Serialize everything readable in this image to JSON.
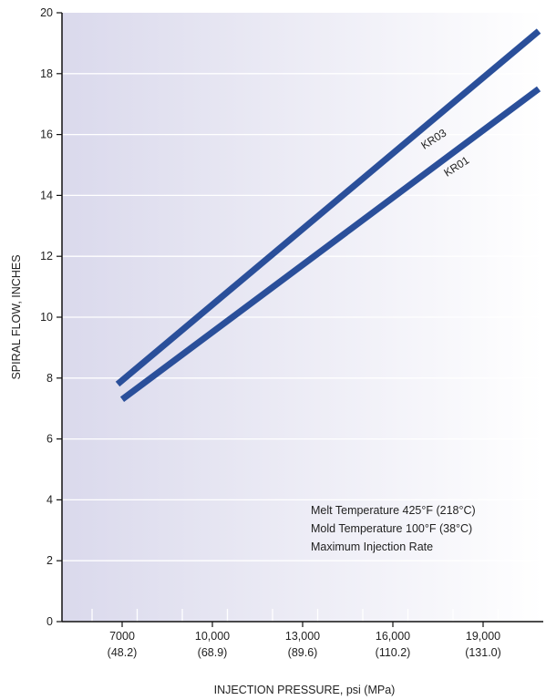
{
  "chart_data": {
    "type": "line",
    "xlabel": "INJECTION PRESSURE, psi (MPa)",
    "ylabel": "SPIRAL FLOW, INCHES",
    "xlim": [
      5000,
      21000
    ],
    "ylim": [
      0,
      20
    ],
    "y_ticks": [
      "0",
      "2",
      "4",
      "6",
      "8",
      "10",
      "12",
      "14",
      "16",
      "18",
      "20"
    ],
    "x_ticks": [
      {
        "value": 7000,
        "psi": "7000",
        "mpa": "(48.2)"
      },
      {
        "value": 10000,
        "psi": "10,000",
        "mpa": "(68.9)"
      },
      {
        "value": 13000,
        "psi": "13,000",
        "mpa": "(89.6)"
      },
      {
        "value": 16000,
        "psi": "16,000",
        "mpa": "(110.2)"
      },
      {
        "value": 19000,
        "psi": "19,000",
        "mpa": "(131.0)"
      }
    ],
    "grid": true,
    "series": [
      {
        "name": "KR03",
        "x": [
          6850,
          20850
        ],
        "y": [
          7.8,
          19.4
        ],
        "color": "#2a4f9a"
      },
      {
        "name": "KR01",
        "x": [
          7000,
          20850
        ],
        "y": [
          7.3,
          17.5
        ],
        "color": "#2a4f9a"
      }
    ],
    "annotations": [
      "Melt Temperature 425°F (218°C)",
      "Mold Temperature 100°F (38°C)",
      "Maximum Injection Rate"
    ],
    "background_gradient": [
      "#dad9ec",
      "#ffffff"
    ]
  }
}
